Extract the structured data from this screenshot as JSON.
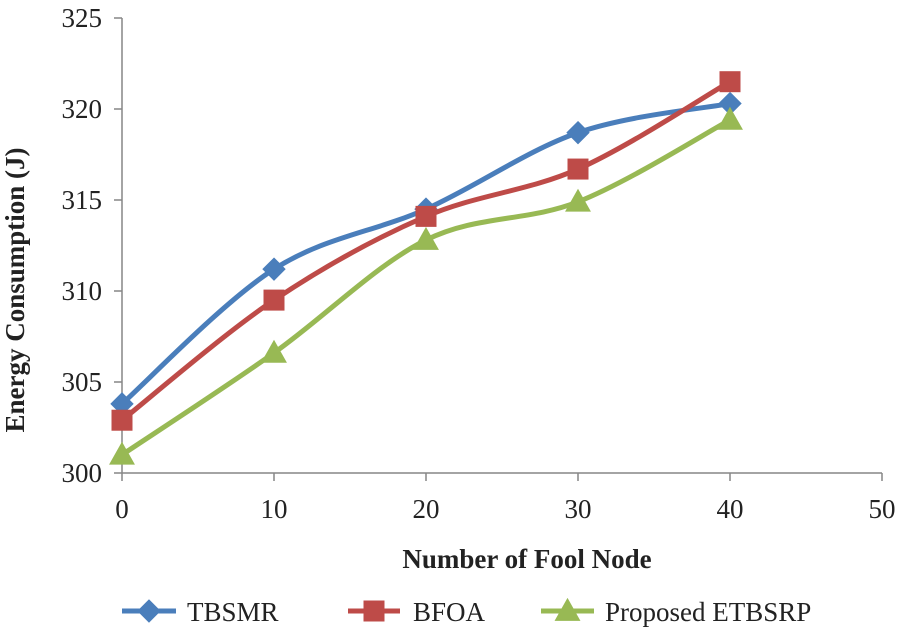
{
  "chart_data": {
    "type": "line",
    "title": "",
    "xlabel": "Number of Fool Node",
    "ylabel": "Energy Consumption (J)",
    "x": [
      0,
      10,
      20,
      30,
      40
    ],
    "xlim": [
      0,
      50
    ],
    "xticks": [
      0,
      10,
      20,
      30,
      40,
      50
    ],
    "ylim": [
      300,
      325
    ],
    "yticks": [
      300,
      305,
      310,
      315,
      320,
      325
    ],
    "grid": false,
    "legend_position": "bottom",
    "smooth": true,
    "series": [
      {
        "name": "TBSMR",
        "values": [
          303.8,
          311.2,
          314.5,
          318.7,
          320.3
        ],
        "color": "#4a7ebb",
        "marker": "diamond"
      },
      {
        "name": "BFOA",
        "values": [
          302.9,
          309.5,
          314.1,
          316.7,
          321.5
        ],
        "color": "#be4b48",
        "marker": "square"
      },
      {
        "name": "Proposed ETBSRP",
        "values": [
          301.0,
          306.6,
          312.8,
          314.9,
          319.4
        ],
        "color": "#98b954",
        "marker": "triangle"
      }
    ]
  }
}
